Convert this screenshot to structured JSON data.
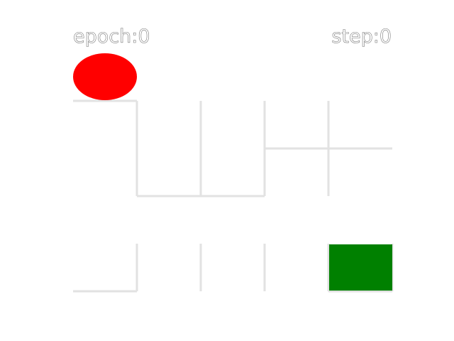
{
  "hud": {
    "epoch": "epoch:0",
    "step": "step:0"
  },
  "colors": {
    "agent": "#ff0000",
    "goal": "#008000",
    "wall": "#e2e2e2",
    "background": "#ffffff"
  },
  "grid": {
    "cols": 5,
    "rows": 5,
    "agent": {
      "col": 0,
      "row": 0
    },
    "goal": {
      "col": 4,
      "row": 4
    }
  },
  "icons": {
    "agent": "red-ellipse-agent",
    "goal": "green-square-goal"
  }
}
